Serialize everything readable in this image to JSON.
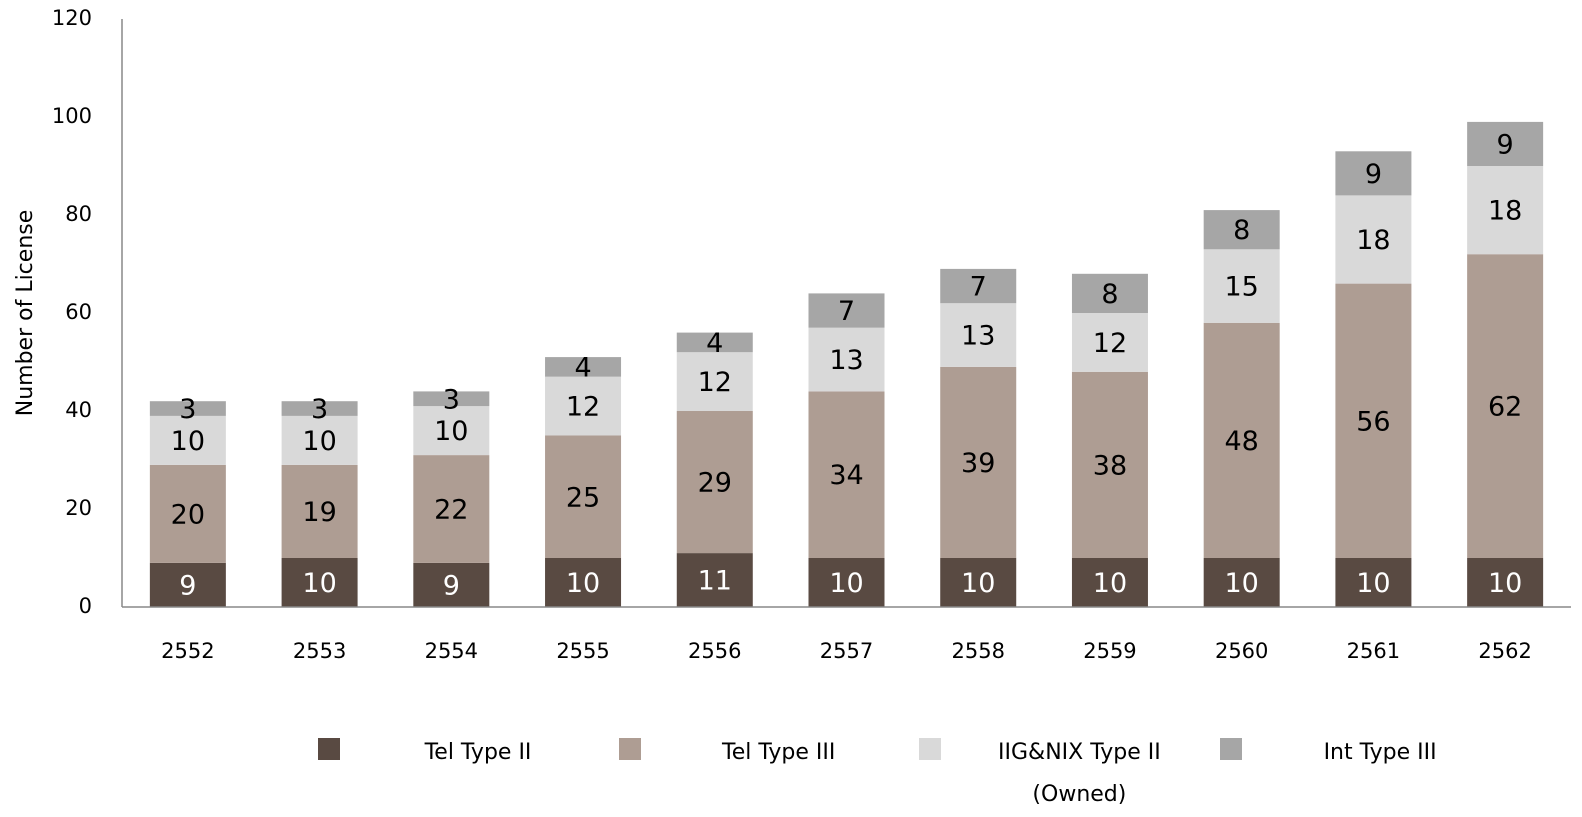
{
  "chart_data": {
    "type": "stacked_bar",
    "y_label": "Number  of License",
    "categories": [
      "2552",
      "2553",
      "2554",
      "2555",
      "2556",
      "2557",
      "2558",
      "2559",
      "2560",
      "2561",
      "2562"
    ],
    "series": [
      {
        "name": "Tel Type II",
        "color": "#594a42",
        "values": [
          9,
          10,
          9,
          10,
          11,
          10,
          10,
          10,
          10,
          10,
          10
        ]
      },
      {
        "name": "Tel Type III",
        "color": "#ae9d93",
        "values": [
          20,
          19,
          22,
          25,
          29,
          34,
          39,
          38,
          48,
          56,
          62
        ]
      },
      {
        "name": "IIG&NIX Type II (Owned)",
        "color": "#d9d9d9",
        "values": [
          10,
          10,
          10,
          12,
          12,
          13,
          13,
          12,
          15,
          18,
          18
        ]
      },
      {
        "name": "Int Type III",
        "color": "#a6a6a6",
        "values": [
          3,
          3,
          3,
          4,
          4,
          7,
          7,
          8,
          8,
          9,
          9
        ]
      }
    ],
    "ylim": [
      0,
      120
    ],
    "yticks": [
      0,
      20,
      40,
      60,
      80,
      100,
      120
    ],
    "grid": false,
    "legend": "bottom"
  }
}
